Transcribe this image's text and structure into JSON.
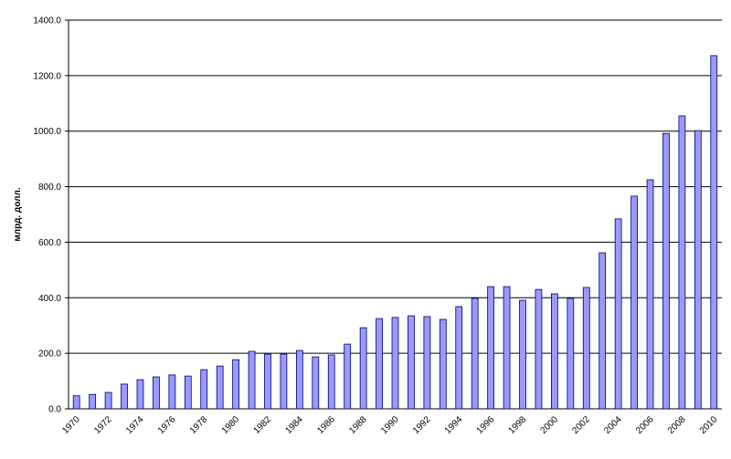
{
  "chart_data": {
    "type": "bar",
    "y_label": "млрд. долл.",
    "categories": [
      "1970",
      null,
      "1972",
      null,
      "1974",
      null,
      "1976",
      null,
      "1978",
      null,
      "1980",
      null,
      "1982",
      null,
      "1984",
      null,
      "1986",
      null,
      "1988",
      null,
      "1990",
      null,
      "1992",
      null,
      "1994",
      null,
      "1996",
      null,
      "1998",
      null,
      "2000",
      null,
      "2002",
      null,
      "2004",
      null,
      "2006",
      null,
      "2008",
      null,
      "2010"
    ],
    "values": [
      47,
      52,
      59,
      89,
      105,
      115,
      122,
      118,
      141,
      154,
      177,
      207,
      197,
      197,
      210,
      187,
      194,
      233,
      292,
      325,
      329,
      335,
      332,
      322,
      368,
      398,
      440,
      440,
      391,
      430,
      414,
      398,
      437,
      562,
      684,
      766,
      825,
      992,
      1055,
      1002,
      1272
    ],
    "color": "#9999ff",
    "ylim": [
      0,
      1400
    ],
    "yticks": [
      {
        "value": 0,
        "label": "0.0"
      },
      {
        "value": 200,
        "label": "200.0"
      },
      {
        "value": 400,
        "label": "400.0"
      },
      {
        "value": 600,
        "label": "600.0"
      },
      {
        "value": 800,
        "label": "800.0"
      },
      {
        "value": 1000,
        "label": "1000.0"
      },
      {
        "value": 1200,
        "label": "1200.0"
      },
      {
        "value": 1400,
        "label": "1400.0"
      }
    ],
    "grid": true
  }
}
